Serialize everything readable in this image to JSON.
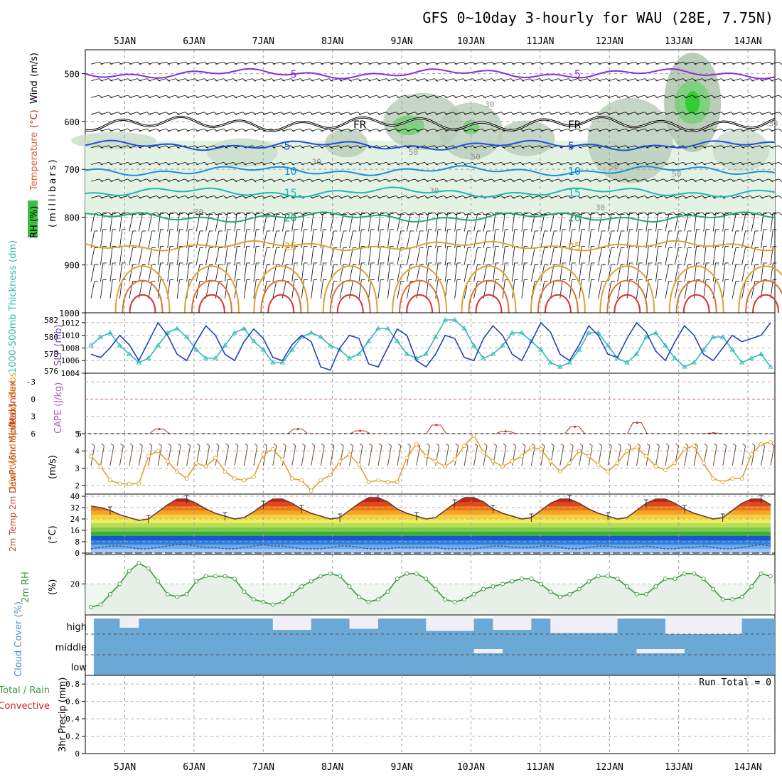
{
  "title": "GFS 0~10day 3-hourly for WAU (28E, 7.75N)",
  "chart_data": [
    {
      "id": "upper_air",
      "type": "heatmap",
      "dates": [
        "5JAN",
        "6JAN",
        "7JAN",
        "8JAN",
        "9JAN",
        "10JAN",
        "11JAN",
        "12JAN",
        "13JAN",
        "14JAN"
      ],
      "y_ticks": [
        500,
        600,
        700,
        800,
        900,
        1000
      ],
      "ylim": [
        1000,
        450
      ],
      "ylabel_left": [
        {
          "text": "RH (%)",
          "color": "#000000"
        },
        {
          "text": "Temperature",
          "color": "#e06040"
        },
        {
          "text": "(°C)",
          "color": "#cc2222"
        },
        {
          "text": "Wind",
          "color": "#000000"
        },
        {
          "text": "(m/s)",
          "color": "#000000"
        }
      ],
      "ylabel_right": "(millibars)",
      "rh_contour_labels": [
        "30",
        "50"
      ],
      "temperature_isotherms": [
        {
          "label": "-5",
          "color": "#8a2be2",
          "pressure": 500
        },
        {
          "label": "FR",
          "color": "#000000",
          "pressure": 605
        },
        {
          "label": "5",
          "color": "#2050d8",
          "pressure": 650
        },
        {
          "label": "10",
          "color": "#1a8fd8",
          "pressure": 703
        },
        {
          "label": "15",
          "color": "#20b8b8",
          "pressure": 748
        },
        {
          "label": "20",
          "color": "#20a878",
          "pressure": 800
        },
        {
          "label": "25",
          "color": "#e0a030",
          "pressure": 860
        }
      ]
    },
    {
      "id": "slp_thickness",
      "type": "line",
      "ylabel_left": "1000-500mb Thickness (dm)",
      "ylabel_right": "SLP (mb)",
      "left_ticks": [
        "576",
        "578",
        "580",
        "582"
      ],
      "right_ticks": [
        "1004",
        "1006",
        "1008",
        "1010",
        "1012"
      ],
      "left_range": [
        576,
        582.5
      ],
      "right_range": [
        1004,
        1013
      ],
      "series": [
        {
          "name": "SLP",
          "color": "#2040c0",
          "values": [
            1007,
            1006.5,
            1008,
            1010,
            1008.5,
            1006,
            1009,
            1012,
            1010,
            1007,
            1006,
            1009,
            1011.5,
            1010,
            1007,
            1006,
            1009,
            1011,
            1009.5,
            1006.5,
            1006,
            1008.5,
            1010,
            1009,
            1005,
            1004.5,
            1008,
            1010,
            1009.5,
            1005.5,
            1005,
            1008,
            1011,
            1010,
            1006,
            1005,
            1007,
            1010,
            1009.5,
            1006.5,
            1006,
            1009.5,
            1011.5,
            1010,
            1007,
            1006,
            1009,
            1012,
            1010.5,
            1007,
            1006,
            1008.5,
            1011.5,
            1010,
            1007,
            1006.5,
            1009.5,
            1012,
            1010.5,
            1007.5,
            1006,
            1009,
            1011.5,
            1010,
            1007,
            1006,
            1008,
            1010,
            1009,
            1009.5,
            1010,
            1012
          ]
        },
        {
          "name": "Thickness",
          "color": "#30b8b8",
          "values": [
            579,
            580,
            580.5,
            579,
            578,
            577,
            577.5,
            579,
            580.5,
            581,
            580,
            578.5,
            577.5,
            577.5,
            579,
            580.5,
            581,
            579.5,
            578.5,
            577,
            577,
            578.5,
            580,
            580.5,
            580,
            579,
            578.5,
            577.5,
            578,
            579.5,
            581,
            581,
            579.5,
            578,
            577.5,
            578,
            580,
            582,
            582,
            581,
            579,
            577.5,
            578,
            579,
            580.5,
            580.5,
            579.5,
            578.5,
            577,
            576.5,
            577,
            578.5,
            580.5,
            580.5,
            579,
            577.5,
            577,
            578,
            580,
            580.5,
            579,
            577.5,
            576.5,
            577,
            578.5,
            580,
            580,
            578.5,
            577,
            577.5,
            578,
            576.5
          ]
        }
      ]
    },
    {
      "id": "cape_li",
      "type": "line",
      "ylabel_left": "Lifted Index",
      "ylabel_right": "CAPE (J/kg)",
      "left_ticks": [
        "-3",
        "0",
        "3",
        "6"
      ],
      "right_ticks": [
        "5"
      ],
      "series": [
        {
          "name": "Lifted Index",
          "color": "#cc2222",
          "peaks": [
            {
              "day": 1.5,
              "value": 5.2
            },
            {
              "day": 3.5,
              "value": 5.2
            },
            {
              "day": 4.4,
              "value": 5.5
            },
            {
              "day": 5.5,
              "value": 4.5
            },
            {
              "day": 6.5,
              "value": 5.6
            },
            {
              "day": 7.5,
              "value": 4.8
            },
            {
              "day": 8.4,
              "value": 4.1
            },
            {
              "day": 9.5,
              "value": 5.9
            }
          ]
        }
      ]
    },
    {
      "id": "wind10m",
      "type": "line",
      "ylabel_left": "10m Wind Speed & Barbs",
      "ylabel_right": "(m/s)",
      "ticks": [
        "2",
        "3",
        "4",
        "5"
      ],
      "ylim": [
        1.5,
        5
      ],
      "series": [
        {
          "name": "10m Wind Speed",
          "color": "#e0a030",
          "values": [
            3.7,
            3.1,
            2.3,
            2.1,
            2.1,
            2.1,
            3.7,
            4.0,
            3.4,
            2.8,
            2.4,
            3.3,
            3.1,
            3.6,
            2.8,
            2.4,
            2.3,
            2.5,
            3.8,
            4.1,
            3.5,
            2.4,
            2.3,
            1.7,
            2.3,
            2.6,
            3.4,
            3.8,
            3.2,
            2.2,
            2.3,
            2.2,
            2.2,
            3.6,
            4.4,
            3.7,
            3.4,
            3.1,
            3.5,
            4.3,
            4.9,
            3.9,
            3.4,
            3.1,
            3.4,
            3.7,
            4.2,
            4.1,
            3.4,
            2.8,
            3.3,
            4.0,
            3.7,
            3.2,
            2.8,
            3.3,
            4.0,
            4.2,
            3.7,
            3.1,
            2.9,
            3.3,
            4.1,
            4.3,
            3.3,
            2.4,
            2.2,
            2.4,
            2.4,
            3.8,
            4.4,
            4.5
          ]
        }
      ]
    },
    {
      "id": "temp2m",
      "type": "area",
      "ylabel_left": "2m Temp 2m DewPt (6hr Min/Max)",
      "ylabel_right": "(°C)",
      "ticks": [
        "0",
        "8",
        "16",
        "24",
        "32",
        "40"
      ],
      "ylim": [
        0,
        40
      ],
      "series": [
        {
          "name": "2m Temp",
          "color": "#6b3a2a",
          "values": [
            33,
            32,
            30,
            27,
            25,
            23,
            24,
            29,
            34,
            38,
            38,
            35,
            31,
            28,
            26,
            24,
            25,
            29,
            34,
            38,
            38,
            35,
            31,
            28,
            26,
            24,
            25,
            30,
            35,
            39,
            39,
            36,
            31,
            28,
            26,
            24,
            25,
            30,
            35,
            39,
            39,
            36,
            31,
            28,
            26,
            24,
            25,
            30,
            35,
            38,
            38,
            35,
            31,
            28,
            26,
            24,
            25,
            30,
            35,
            38,
            38,
            35,
            31,
            28,
            26,
            24,
            25,
            30,
            35,
            38,
            38,
            34
          ]
        },
        {
          "name": "2m DewPt",
          "color": "#555555",
          "values": [
            3,
            4,
            5,
            5,
            4,
            3,
            3,
            4,
            5,
            6,
            6,
            5,
            4,
            4,
            3,
            3,
            4,
            5,
            6,
            5,
            5,
            4,
            3,
            3,
            3,
            4,
            5,
            5,
            4,
            3,
            3,
            3,
            4,
            4,
            4,
            4,
            4,
            3,
            3,
            3,
            3,
            4,
            5,
            5,
            4,
            4,
            4,
            5,
            5,
            4,
            3,
            3,
            4,
            5,
            5,
            4,
            4,
            4,
            5,
            4,
            3,
            3,
            4,
            4,
            5,
            4,
            3,
            3,
            4,
            5,
            6,
            5
          ]
        }
      ],
      "temperature_bands": [
        "#9fc6ff",
        "#6aaaf0",
        "#2b7de8",
        "#1858cc",
        "#3fae3a",
        "#7ac947",
        "#b8dd5a",
        "#eeee58",
        "#f8d040",
        "#f5a524",
        "#ee7418",
        "#e0481a",
        "#c42420",
        "#8c1010"
      ]
    },
    {
      "id": "rh2m",
      "type": "line",
      "ylabel_left": "2m RH",
      "ylabel_right": "(%)",
      "ticks": [
        "20"
      ],
      "ylim": [
        8,
        30
      ],
      "series": [
        {
          "name": "2m RH",
          "color": "#3a9a3a",
          "values": [
            11,
            12,
            16,
            20,
            25,
            28,
            26,
            21,
            16,
            15,
            16,
            21,
            23,
            23,
            23,
            22,
            17,
            14,
            13,
            12,
            13,
            16,
            19,
            21,
            23,
            24,
            23,
            19,
            15,
            13,
            14,
            17,
            22,
            24,
            24,
            22,
            18,
            14,
            13,
            14,
            16,
            18,
            19,
            20,
            21,
            22,
            22,
            20,
            17,
            15,
            16,
            18,
            21,
            23,
            23,
            22,
            19,
            16,
            16,
            19,
            22,
            22,
            24,
            24,
            22,
            18,
            14,
            14,
            15,
            19,
            24,
            23
          ]
        }
      ]
    },
    {
      "id": "cloud_cover",
      "type": "area",
      "ylabel_left": "Cloud Cover (%)",
      "layer_labels": [
        "high",
        "middle",
        "low"
      ],
      "colors": {
        "cloud": "#6aa8d6",
        "clear": "#f2eef6"
      }
    },
    {
      "id": "precip",
      "type": "bar",
      "ylabel_left": "Total / Rain Convective",
      "ylabel_right": "3hr Precip (mm)",
      "ticks": [
        "0",
        "0.2",
        "0.4",
        "0.6",
        "0.8"
      ],
      "ylim": [
        0,
        0.9
      ],
      "run_total": "Run Total = 0",
      "values": []
    }
  ]
}
